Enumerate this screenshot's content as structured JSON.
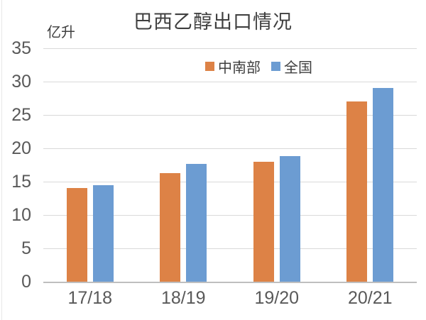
{
  "chart_data": {
    "type": "bar",
    "title": "巴西乙醇出口情况",
    "ylabel": "亿升",
    "xlabel": "",
    "categories": [
      "17/18",
      "18/19",
      "19/20",
      "20/21"
    ],
    "series": [
      {
        "name": "中南部",
        "color": "#DD8246",
        "values": [
          14.0,
          16.3,
          18.0,
          27.0
        ]
      },
      {
        "name": "全国",
        "color": "#6C9CD2",
        "values": [
          14.5,
          17.7,
          18.8,
          29.0
        ]
      }
    ],
    "ylim": [
      0,
      35
    ],
    "yticks": [
      0,
      5,
      10,
      15,
      20,
      25,
      30,
      35
    ],
    "grid": true,
    "legend_position": "top-center",
    "colors": {
      "gridline": "#d9d9d9",
      "axis_line": "#bfbfbf",
      "tick_text": "#595959",
      "title_text": "#3f3f3f"
    }
  }
}
